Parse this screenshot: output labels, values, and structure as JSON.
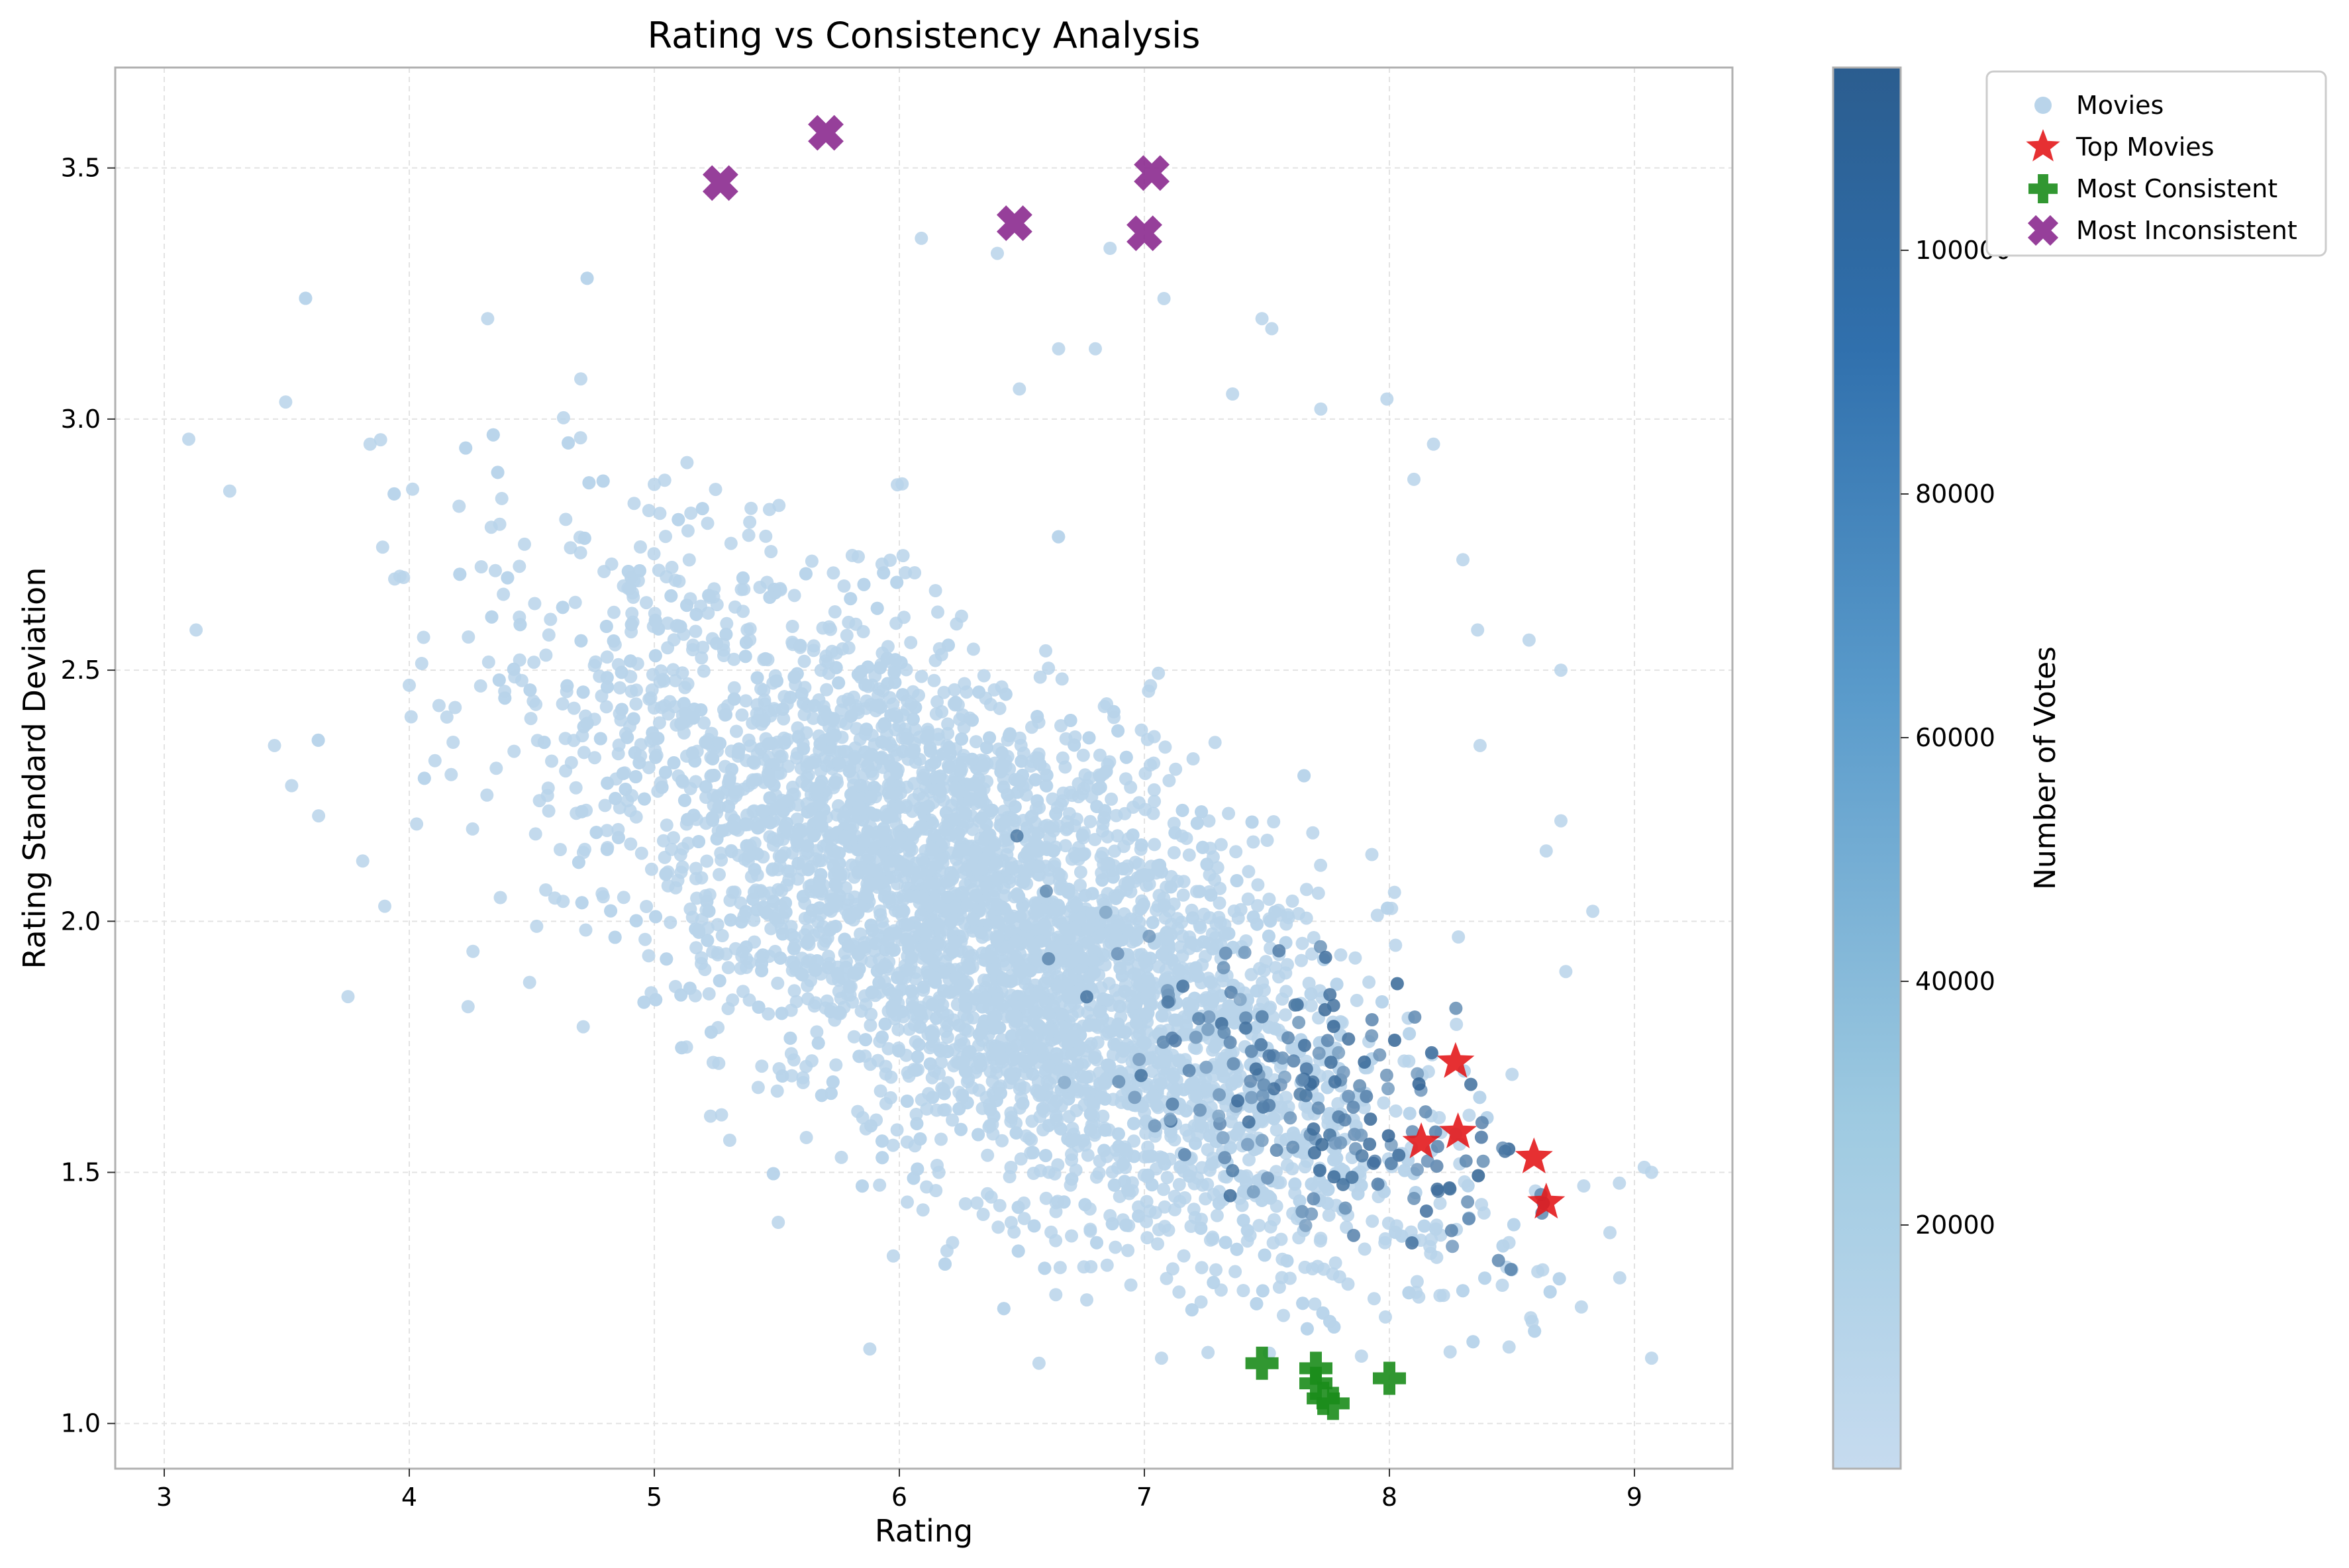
{
  "chart_data": {
    "type": "scatter",
    "title": "Rating vs Consistency Analysis",
    "xlabel": "Rating",
    "ylabel": "Rating Standard Deviation",
    "xlim": [
      2.8,
      9.4
    ],
    "ylim": [
      0.91,
      3.7
    ],
    "xticks": [
      "3",
      "4",
      "5",
      "6",
      "7",
      "8",
      "9"
    ],
    "yticks": [
      "1.0",
      "1.5",
      "2.0",
      "2.5",
      "3.0",
      "3.5"
    ],
    "grid": true,
    "legend_position": "upper right, outside plot",
    "legend": [
      "Movies",
      "Top Movies",
      "Most Consistent",
      "Most Inconsistent"
    ],
    "colorbar": {
      "label": "Number of Votes",
      "range": [
        0,
        115000
      ],
      "ticks": [
        "20000",
        "40000",
        "60000",
        "80000",
        "100000"
      ],
      "colormap": "Blues",
      "color_low": "#c6dbef",
      "color_high": "#2b5d8f"
    },
    "colors": {
      "movies": "#b9d4ea",
      "top_movies": "#e31a1c",
      "most_consistent": "#1b8c1b",
      "most_inconsistent": "#8b2a8f"
    },
    "series": [
      {
        "name": "Movies",
        "marker": "circle",
        "distribution": "dense cloud of ~10000 points; mean sd falls as rating rises",
        "points": [
          [
            3.1,
            2.96
          ],
          [
            3.13,
            2.58
          ],
          [
            3.45,
            2.35
          ],
          [
            3.52,
            2.27
          ],
          [
            3.63,
            2.21
          ],
          [
            3.75,
            1.85
          ],
          [
            3.81,
            2.12
          ],
          [
            3.84,
            2.95
          ],
          [
            3.9,
            2.03
          ],
          [
            4.0,
            2.47
          ],
          [
            4.24,
            1.83
          ],
          [
            4.26,
            1.94
          ],
          [
            4.32,
            3.2
          ],
          [
            4.52,
            1.99
          ],
          [
            4.7,
            3.08
          ],
          [
            4.71,
            1.79
          ],
          [
            6.09,
            3.36
          ],
          [
            6.4,
            3.33
          ],
          [
            6.49,
            3.06
          ],
          [
            6.65,
            3.14
          ],
          [
            6.8,
            3.14
          ],
          [
            6.86,
            3.34
          ],
          [
            7.08,
            3.24
          ],
          [
            7.48,
            3.2
          ],
          [
            7.52,
            3.18
          ],
          [
            7.36,
            3.05
          ],
          [
            7.72,
            3.02
          ],
          [
            7.99,
            3.04
          ],
          [
            8.18,
            2.95
          ],
          [
            8.1,
            2.88
          ],
          [
            8.3,
            2.72
          ],
          [
            8.36,
            2.58
          ],
          [
            8.7,
            2.5
          ],
          [
            8.57,
            2.56
          ],
          [
            8.37,
            2.35
          ],
          [
            8.64,
            2.14
          ],
          [
            8.7,
            2.2
          ],
          [
            8.83,
            2.02
          ],
          [
            8.72,
            1.9
          ],
          [
            9.04,
            1.51
          ],
          [
            9.07,
            1.5
          ],
          [
            8.94,
            1.29
          ],
          [
            8.9,
            1.38
          ],
          [
            9.07,
            1.13
          ],
          [
            6.57,
            1.12
          ],
          [
            7.07,
            1.13
          ],
          [
            7.51,
            1.14
          ],
          [
            5.0,
            2.87
          ],
          [
            5.47,
            2.82
          ],
          [
            5.25,
            2.86
          ]
        ]
      },
      {
        "name": "Top Movies",
        "marker": "star",
        "points": [
          [
            8.27,
            1.72
          ],
          [
            8.13,
            1.56
          ],
          [
            8.28,
            1.58
          ],
          [
            8.59,
            1.53
          ],
          [
            8.64,
            1.44
          ]
        ]
      },
      {
        "name": "Most Consistent",
        "marker": "plus",
        "points": [
          [
            7.48,
            1.12
          ],
          [
            7.7,
            1.11
          ],
          [
            7.7,
            1.08
          ],
          [
            7.73,
            1.05
          ],
          [
            7.77,
            1.04
          ],
          [
            8.0,
            1.09
          ]
        ]
      },
      {
        "name": "Most Inconsistent",
        "marker": "x",
        "points": [
          [
            5.27,
            3.47
          ],
          [
            5.7,
            3.57
          ],
          [
            6.47,
            3.39
          ],
          [
            7.0,
            3.37
          ],
          [
            7.03,
            3.49
          ]
        ]
      }
    ]
  }
}
